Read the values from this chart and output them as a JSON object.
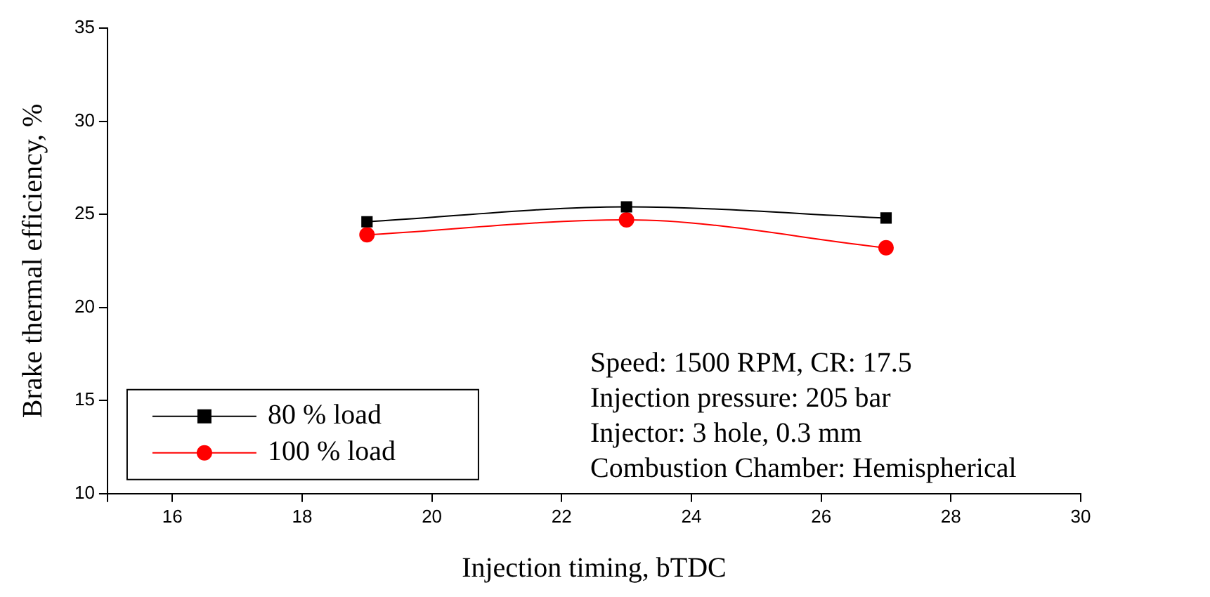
{
  "chart_data": {
    "type": "line",
    "xlabel": "Injection timing, bTDC",
    "ylabel": "Brake thermal efficiency, %",
    "x": [
      19,
      23,
      27
    ],
    "series": [
      {
        "name": "80 % load",
        "color": "#000000",
        "marker": "square",
        "values": [
          24.6,
          25.4,
          24.8
        ]
      },
      {
        "name": "100 % load",
        "color": "#ff0000",
        "marker": "circle",
        "values": [
          23.9,
          24.7,
          23.2
        ]
      }
    ],
    "xlim": [
      15,
      30
    ],
    "xticks": [
      {
        "value": 15,
        "label": null
      },
      16,
      18,
      20,
      22,
      24,
      26,
      28,
      30
    ],
    "ylim": [
      10,
      35
    ],
    "yticks": [
      10,
      15,
      20,
      25,
      30,
      35
    ],
    "grid": false,
    "legend": "bottom left",
    "annotations": [
      "Speed: 1500 RPM, CR: 17.5",
      "Injection pressure: 205 bar",
      "Injector: 3 hole, 0.3 mm",
      "Combustion Chamber: Hemispherical"
    ]
  }
}
